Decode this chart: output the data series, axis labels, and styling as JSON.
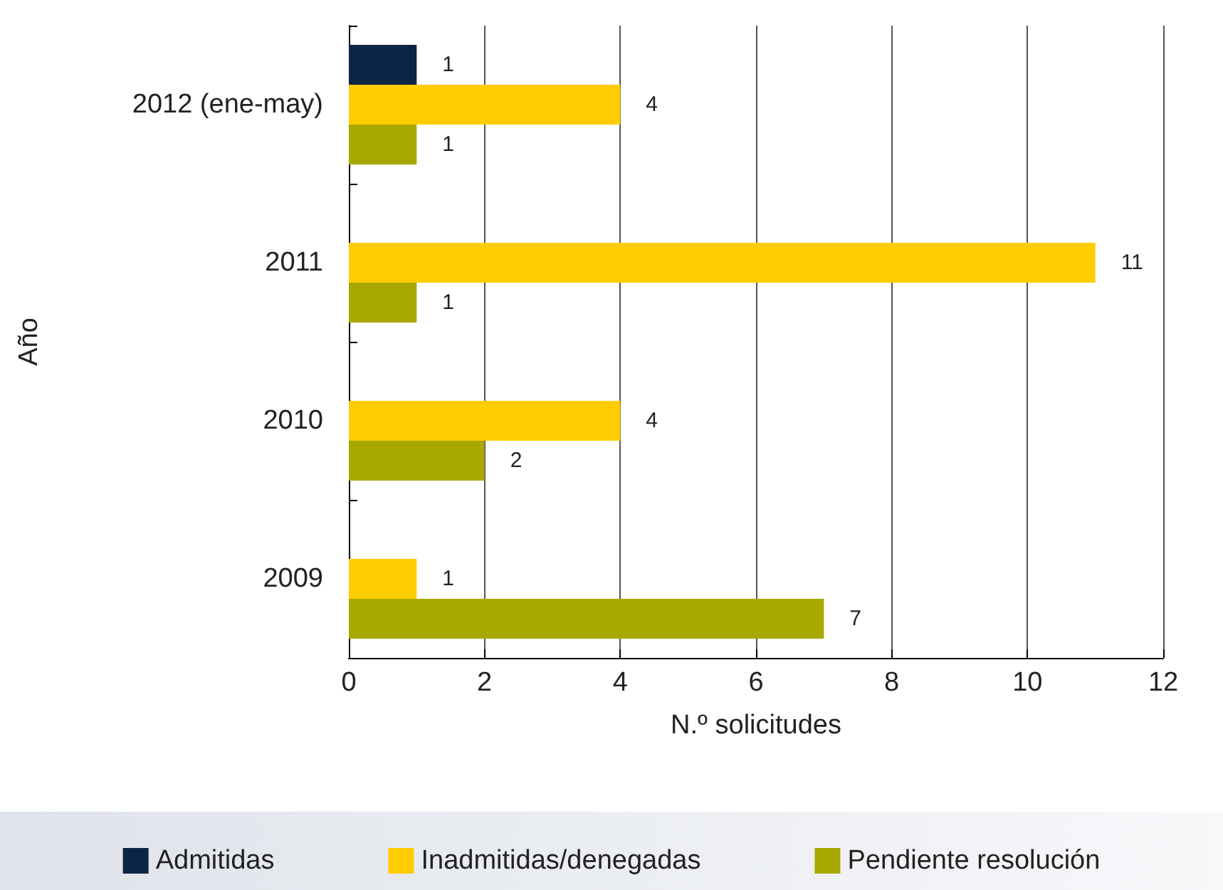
{
  "chart_data": {
    "type": "bar",
    "orientation": "horizontal",
    "ylabel": "Año",
    "xlabel": "N.º solicitudes",
    "categories": [
      "2012 (ene-may)",
      "2011",
      "2010",
      "2009"
    ],
    "series": [
      {
        "name": "Admitidas",
        "color": "#0b2545",
        "values": [
          1,
          null,
          null,
          null
        ]
      },
      {
        "name": "Inadmitidas/denegadas",
        "color": "#ffcc00",
        "values": [
          4,
          11,
          4,
          1
        ]
      },
      {
        "name": "Pendiente resolución",
        "color": "#a8a800",
        "values": [
          1,
          1,
          2,
          7
        ]
      }
    ],
    "xlim": [
      0,
      12
    ],
    "xticks": [
      0,
      2,
      4,
      6,
      8,
      10,
      12
    ],
    "grid": "x",
    "legend": "bottom",
    "data_labels": true
  }
}
